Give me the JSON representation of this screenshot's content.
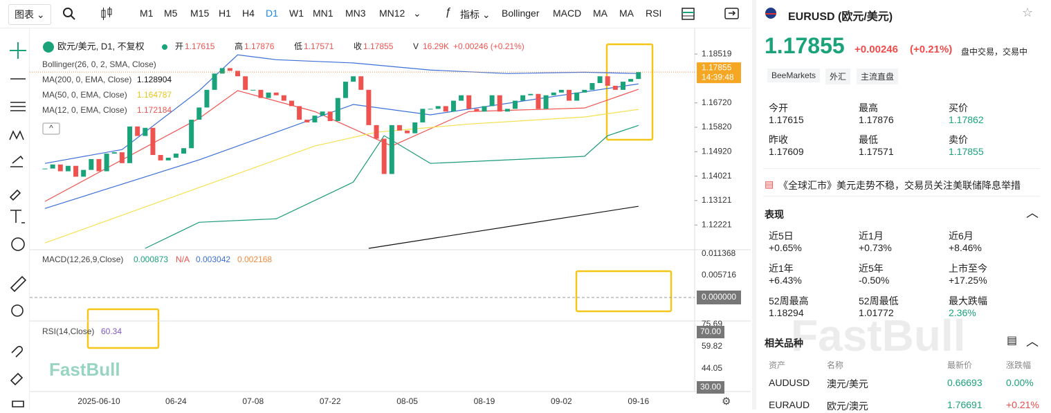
{
  "toolbar": {
    "chart_menu": "图表",
    "timeframes": [
      "M1",
      "M5",
      "M15",
      "H1",
      "H4",
      "D1",
      "W1",
      "MN1",
      "MN3",
      "MN12"
    ],
    "active": "D1",
    "indicators_menu": "指标",
    "indicators": [
      "Bollinger",
      "MACD",
      "MA",
      "MA",
      "RSI"
    ]
  },
  "chart_data": {
    "type": "candlestick",
    "symbol": "欧元/美元, D1, 不复权",
    "ohlc": [
      {
        "label": "开",
        "value": "1.17615"
      },
      {
        "label": "高",
        "value": "1.17876"
      },
      {
        "label": "低",
        "value": "1.17571"
      },
      {
        "label": "收",
        "value": "1.17855"
      },
      {
        "label": "V",
        "value": "16.29K"
      }
    ],
    "change": "+0.00246 (+0.21%)",
    "indicator_legend": [
      {
        "label": "Bollinger(26, 0, 2, SMA, Close)"
      },
      {
        "label": "MA(200, 0, EMA, Close)",
        "value": "1.128904",
        "color": "#111111"
      },
      {
        "label": "MA(50, 0, EMA, Close)",
        "value": "1.164787",
        "color": "#e6c619"
      },
      {
        "label": "MA(12, 0, EMA, Close)",
        "value": "1.172184",
        "color": "#ef5350"
      }
    ],
    "categories": [
      null,
      null,
      null,
      null,
      null,
      null,
      null,
      "2025-06-10",
      null,
      null,
      null,
      null,
      null,
      null,
      null,
      null,
      null,
      "06-24",
      null,
      null,
      null,
      null,
      null,
      null,
      null,
      null,
      null,
      "07-08",
      null,
      null,
      null,
      null,
      null,
      null,
      null,
      null,
      null,
      "07-22",
      null,
      null,
      null,
      null,
      null,
      null,
      null,
      null,
      null,
      "08-05",
      null,
      null,
      null,
      null,
      null,
      null,
      null,
      null,
      null,
      "08-19",
      null,
      null,
      null,
      null,
      null,
      null,
      null,
      null,
      null,
      "09-02",
      null,
      null,
      null,
      null,
      null,
      null,
      null,
      null,
      null,
      "09-16"
    ],
    "close": [
      1.143,
      1.1445,
      1.142,
      1.144,
      1.14,
      1.1425,
      1.1465,
      1.142,
      1.1485,
      1.149,
      1.145,
      1.1585,
      1.155,
      1.158,
      1.148,
      1.146,
      1.147,
      1.1485,
      1.1505,
      1.161,
      1.1655,
      1.172,
      1.178,
      1.18,
      1.179,
      1.177,
      1.172,
      1.172,
      1.169,
      1.171,
      1.17,
      1.168,
      1.166,
      1.161,
      1.16,
      1.1625,
      1.164,
      1.1605,
      1.169,
      1.175,
      1.177,
      1.172,
      1.159,
      1.154,
      1.141,
      1.159,
      1.157,
      1.156,
      1.16,
      1.165,
      1.165,
      1.166,
      1.164,
      1.168,
      1.17,
      1.165,
      1.164,
      1.166,
      1.17,
      1.164,
      1.165,
      1.168,
      1.17,
      1.1705,
      1.165,
      1.17,
      1.171,
      1.172,
      1.168,
      1.171,
      1.172,
      1.1745,
      1.177,
      1.1735,
      1.172,
      1.175,
      1.176,
      1.17855
    ],
    "colors": {
      "up": "#1aa37a",
      "down": "#ef5350"
    },
    "ylim": [
      1.1136,
      1.1921
    ],
    "yticks": [
      1.18519,
      {
        "value": 1.1672,
        "label": "1.16720"
      },
      {
        "value": 1.1582,
        "label": "1.15820"
      },
      {
        "value": 1.1492,
        "label": "1.14920"
      },
      1.14021,
      1.13121,
      1.12221
    ],
    "overlays": [
      {
        "color": "#3b6fd8",
        "x": [
          0,
          10,
          20,
          25,
          30,
          40,
          50,
          60,
          70,
          77
        ],
        "values": [
          1.1449,
          1.15,
          1.1717,
          1.1849,
          1.1831,
          1.1819,
          1.1793,
          1.178,
          1.1785,
          1.178
        ]
      },
      {
        "color": "#3b6fd8",
        "x": [
          0,
          20,
          40,
          50,
          77
        ],
        "values": [
          1.1283,
          1.1462,
          1.1666,
          1.1628,
          1.1742
        ]
      },
      {
        "color": "#1a9a7a",
        "x": [
          13,
          20,
          30,
          40,
          44,
          50,
          60,
          70,
          73,
          77
        ],
        "values": [
          1.1136,
          1.1232,
          1.1245,
          1.138,
          1.1551,
          1.1449,
          1.1462,
          1.1475,
          1.1551,
          1.1589
        ]
      },
      {
        "color": "#ef5350",
        "x": [
          0,
          20,
          25,
          35,
          45,
          55,
          70,
          77
        ],
        "values": [
          1.1309,
          1.1615,
          1.1717,
          1.164,
          1.1513,
          1.164,
          1.1653,
          1.1722
        ]
      },
      {
        "color": "#f5e050",
        "x": [
          0,
          20,
          35,
          43,
          55,
          70,
          77
        ],
        "values": [
          1.1156,
          1.136,
          1.1513,
          1.1564,
          1.1594,
          1.162,
          1.1648
        ]
      },
      {
        "color": "#111111",
        "x": [
          42,
          77
        ],
        "values": [
          1.1136,
          1.1291
        ]
      }
    ],
    "last_price": {
      "value": 1.17855,
      "label": "1.17855",
      "time": "14:39:48"
    },
    "macd": {
      "label": "MACD(12,26,9,Close)",
      "values": [
        {
          "text": "0.000873",
          "color": "#1aa37a"
        },
        {
          "text": "N/A",
          "color": "#ef5350"
        },
        {
          "text": "0.003042",
          "color": "#3b6fd8"
        },
        {
          "text": "0.002168",
          "color": "#f28a3c"
        }
      ],
      "axis": [
        "0.011368",
        "0.005716"
      ],
      "zero": "0.000000"
    },
    "rsi": {
      "label": "RSI(14,Close)",
      "value": "60.34",
      "axis": [
        "75.69",
        "59.82",
        "44.05"
      ],
      "tags": [
        "70.00",
        "30.00"
      ]
    },
    "watermark": "FastBull"
  },
  "quote": {
    "symbol": "EURUSD (欧元/美元)",
    "price": "1.17855",
    "change": "+0.00246",
    "change_pct": "(+0.21%)",
    "status": "盘中交易，交易中",
    "tags": [
      "BeeMarkets",
      "外汇",
      "主流直盘"
    ],
    "stats": [
      {
        "label": "今开",
        "value": "1.17615"
      },
      {
        "label": "最高",
        "value": "1.17876"
      },
      {
        "label": "买价",
        "value": "1.17862"
      },
      {
        "label": "昨收",
        "value": "1.17609"
      },
      {
        "label": "最低",
        "value": "1.17571"
      },
      {
        "label": "卖价",
        "value": "1.17855"
      }
    ]
  },
  "news": "《全球汇市》美元走势不稳，交易员关注美联储降息举措",
  "performance": {
    "title": "表现",
    "items": [
      {
        "label": "近5日",
        "value": "+0.65%"
      },
      {
        "label": "近1月",
        "value": "+0.73%"
      },
      {
        "label": "近6月",
        "value": "+8.46%"
      },
      {
        "label": "近1年",
        "value": "+6.43%"
      },
      {
        "label": "近5年",
        "value": "-0.50%"
      },
      {
        "label": "上市至今",
        "value": "+17.25%"
      },
      {
        "label": "52周最高",
        "value": "1.18294"
      },
      {
        "label": "52周最低",
        "value": "1.01772"
      },
      {
        "label": "最大跌幅",
        "value": "2.36%"
      }
    ]
  },
  "related": {
    "title": "相关品种",
    "headers": [
      "资产",
      "名称",
      "最新价",
      "涨跌幅"
    ],
    "rows": [
      [
        "AUDUSD",
        "澳元/美元",
        "0.66693",
        "0.00%"
      ],
      [
        "EURAUD",
        "欧元/澳元",
        "1.76691",
        "+0.21%"
      ]
    ],
    "watermark": "FastBull"
  }
}
